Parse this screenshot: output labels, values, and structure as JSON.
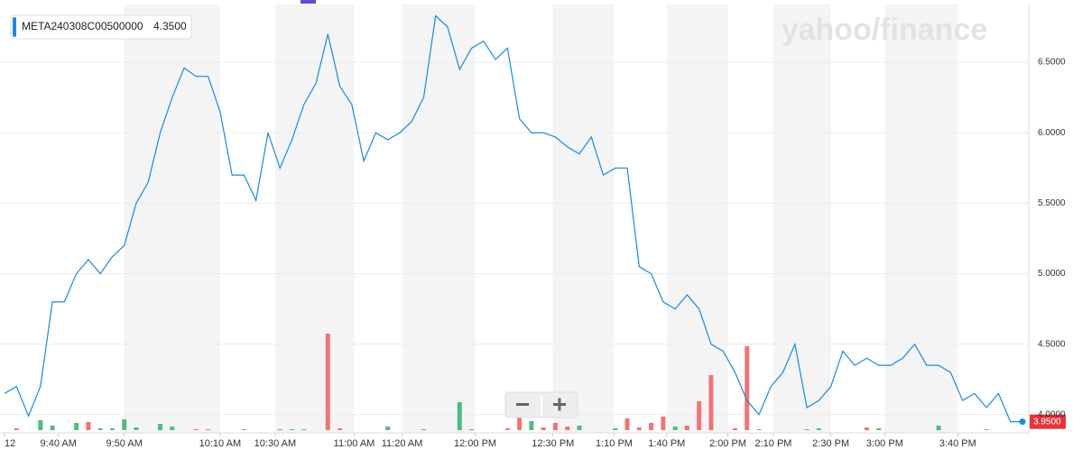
{
  "chart_data": {
    "type": "line",
    "series": [
      {
        "name": "META240308C00500000",
        "color": "#1a8ae0",
        "values": [
          4.15,
          4.2,
          3.99,
          4.2,
          4.8,
          4.8,
          5.0,
          5.1,
          5.0,
          5.12,
          5.2,
          5.5,
          5.65,
          6.0,
          6.25,
          6.46,
          6.4,
          6.4,
          6.15,
          5.7,
          5.7,
          5.52,
          6.0,
          5.75,
          5.95,
          6.2,
          6.35,
          6.7,
          6.33,
          6.2,
          5.8,
          6.0,
          5.95,
          6.0,
          6.08,
          6.25,
          6.83,
          6.75,
          6.45,
          6.6,
          6.65,
          6.52,
          6.6,
          6.1,
          6.0,
          6.0,
          5.97,
          5.9,
          5.85,
          5.97,
          5.7,
          5.75,
          5.75,
          5.05,
          5.0,
          4.8,
          4.75,
          4.85,
          4.75,
          4.5,
          4.45,
          4.3,
          4.1,
          4.0,
          4.2,
          4.3,
          4.5,
          4.05,
          4.1,
          4.2,
          4.45,
          4.35,
          4.4,
          4.35,
          4.35,
          4.4,
          4.5,
          4.35,
          4.35,
          4.3,
          4.1,
          4.15,
          4.05,
          4.15,
          3.95,
          3.95
        ]
      }
    ],
    "legend_value": "4.3500",
    "price_tag": "3.9500",
    "watermark": "yahoo/finance",
    "volume": {
      "values": [
        null,
        2,
        null,
        11,
        5,
        null,
        8,
        9,
        2,
        2,
        12,
        3,
        null,
        7,
        4,
        null,
        1,
        1,
        null,
        null,
        1,
        null,
        null,
        1,
        1,
        1,
        null,
        107,
        2,
        null,
        null,
        null,
        4,
        null,
        null,
        1,
        null,
        null,
        31,
        1,
        null,
        null,
        2,
        20,
        10,
        3,
        8,
        4,
        5,
        null,
        null,
        2,
        13,
        3,
        8,
        15,
        4,
        5,
        32,
        61,
        null,
        2,
        93,
        1,
        null,
        null,
        null,
        1,
        2,
        null,
        null,
        null,
        3,
        2,
        null,
        null,
        null,
        null,
        5,
        null,
        null,
        null,
        1,
        null,
        null,
        null
      ],
      "colors": [
        null,
        "#f27474",
        null,
        "#4dbd80",
        "#4dbd80",
        null,
        "#4dbd80",
        "#f27474",
        "#4dbd80",
        "#4dbd80",
        "#4dbd80",
        "#4dbd80",
        null,
        "#4dbd80",
        "#4dbd80",
        null,
        "#f27474",
        "#f27474",
        null,
        null,
        "#f27474",
        null,
        null,
        "#4dbd80",
        "#4dbd80",
        "#4dbd80",
        null,
        "#f27474",
        "#f27474",
        null,
        null,
        null,
        "#4dbd80",
        null,
        null,
        "#4dbd80",
        null,
        null,
        "#4dbd80",
        "#4dbd80",
        null,
        null,
        "#f27474",
        "#f27474",
        "#4dbd80",
        "#f27474",
        "#f27474",
        "#f27474",
        "#4dbd80",
        null,
        null,
        "#4dbd80",
        "#f27474",
        "#f27474",
        "#f27474",
        "#f27474",
        "#4dbd80",
        "#f27474",
        "#f27474",
        "#f27474",
        null,
        "#f27474",
        "#f27474",
        "#f27474",
        null,
        null,
        null,
        "#4dbd80",
        "#4dbd80",
        null,
        null,
        null,
        "#f27474",
        "#4dbd80",
        null,
        null,
        null,
        null,
        "#4dbd80",
        null,
        null,
        null,
        "#f27474",
        null,
        null,
        null
      ],
      "vlim": [
        0,
        110
      ]
    },
    "xlim": [
      0,
      85
    ],
    "xticks": [
      {
        "value": 0,
        "label": "12"
      },
      {
        "value": 4.5,
        "label": "9:40 AM"
      },
      {
        "value": 10,
        "label": "9:50 AM"
      },
      {
        "value": 18,
        "label": "10:10 AM"
      },
      {
        "value": 22.6,
        "label": "10:30 AM"
      },
      {
        "value": 29.2,
        "label": "11:00 AM"
      },
      {
        "value": 33.2,
        "label": "11:20 AM"
      },
      {
        "value": 39.3,
        "label": "12:00 PM"
      },
      {
        "value": 45.8,
        "label": "12:30 PM"
      },
      {
        "value": 50.9,
        "label": "1:10 PM"
      },
      {
        "value": 55.3,
        "label": "1:40 PM"
      },
      {
        "value": 60.4,
        "label": "2:00 PM"
      },
      {
        "value": 64.2,
        "label": "2:10 PM"
      },
      {
        "value": 69,
        "label": "2:30 PM"
      },
      {
        "value": 73.5,
        "label": "3:00 PM"
      },
      {
        "value": 79.6,
        "label": "3:40 PM"
      }
    ],
    "ylim": [
      3.89,
      6.91
    ],
    "yticks": [
      {
        "value": 4.0,
        "label": "4.0000"
      },
      {
        "value": 4.5,
        "label": "4.5000"
      },
      {
        "value": 5.0,
        "label": "5.0000"
      },
      {
        "value": 5.5,
        "label": "5.5000"
      },
      {
        "value": 6.0,
        "label": "6.0000"
      },
      {
        "value": 6.5,
        "label": "6.5000"
      }
    ],
    "grid": true
  }
}
